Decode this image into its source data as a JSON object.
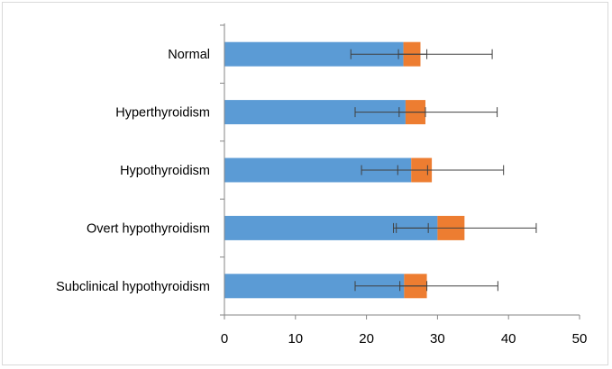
{
  "chart_data": {
    "type": "bar",
    "orientation": "horizontal",
    "stacked": true,
    "categories": [
      "Normal",
      "Hyperthyroidism",
      "Hypothyroidism",
      "Overt hypothyroidism",
      "Subclinical hypothyroidism"
    ],
    "series": [
      {
        "color": "#5B9BD5",
        "values": [
          25.2,
          25.5,
          26.3,
          30.0,
          25.3
        ],
        "error_low": [
          17.8,
          18.4,
          19.3,
          23.8,
          18.4
        ],
        "error_high": [
          28.5,
          28.3,
          28.6,
          28.7,
          28.5
        ]
      },
      {
        "color": "#ED7D31",
        "values": [
          2.4,
          2.8,
          2.9,
          3.8,
          3.2
        ],
        "error_low": [
          24.5,
          24.6,
          24.4,
          24.2,
          24.7
        ],
        "error_high": [
          37.7,
          38.4,
          39.3,
          43.9,
          38.5
        ]
      }
    ],
    "xlim": [
      0,
      50
    ],
    "xticks": [
      "0",
      "10",
      "20",
      "30",
      "40",
      "50"
    ],
    "title": "",
    "xlabel": "",
    "ylabel": "",
    "grid": false,
    "legend": "none"
  }
}
